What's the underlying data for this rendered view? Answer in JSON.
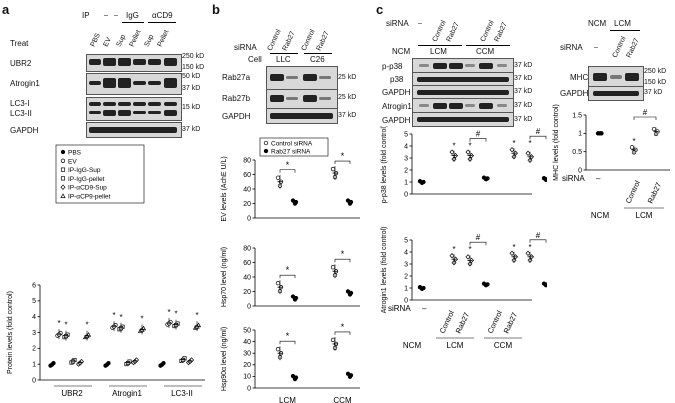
{
  "panels": {
    "a": {
      "letter": "a",
      "ip_label": "IP",
      "ip_dashes": [
        "–",
        "–"
      ],
      "ip_groups": [
        "IgG",
        "αCD9"
      ],
      "treat_label": "Treat",
      "treat_lanes": [
        "PBS",
        "EV",
        "Sup",
        "Pellet",
        "Sup",
        "Pellet"
      ],
      "blots": [
        "UBR2",
        "Atrogin1",
        "LC3-I",
        "LC3-II",
        "GAPDH"
      ],
      "markers": [
        "250 kD",
        "150 kD",
        "50 kD",
        "37 kD",
        "15 kD",
        "37 kD"
      ],
      "legend": [
        "PBS",
        "EV",
        "IP-IgG-Sup",
        "IP-IgG-pellet",
        "IP-αCD9-Sup",
        "IP-αCP9-pellet"
      ]
    },
    "b": {
      "letter": "b",
      "sirna_label": "siRNA",
      "sirna_lanes": [
        "Control",
        "Rab27",
        "Control",
        "Rab27"
      ],
      "cell_label": "Cell",
      "cells": [
        "LLC",
        "C26"
      ],
      "blots": [
        "Rab27a",
        "Rab27b",
        "GAPDH"
      ],
      "markers": [
        "25 kD",
        "25 kD",
        "37 kD"
      ],
      "legend": [
        "Control siRNA",
        "Rab27 siRNA"
      ],
      "xcats": [
        "LCM",
        "CCM"
      ]
    },
    "c": {
      "letter": "c",
      "sirna_label": "siRNA",
      "dash": "–",
      "sirna_lanes": [
        "Control",
        "Rab27",
        "Control",
        "Rab27"
      ],
      "groups": [
        "NCM",
        "LCM",
        "CCM"
      ],
      "blots": [
        "p-p38",
        "p38",
        "GAPDH",
        "Atrogin1",
        "GAPDH"
      ],
      "markers": [
        "37 kD",
        "37 kD",
        "37 kD",
        "37 kD",
        "37 kD"
      ],
      "right_groups": [
        "NCM",
        "LCM"
      ],
      "right_lanes": [
        "Control",
        "Rab27"
      ],
      "right_blots": [
        "MHC",
        "GAPDH"
      ],
      "right_markers": [
        "250 kD",
        "150 kD",
        "37 kD"
      ]
    }
  },
  "chart_data": [
    {
      "type": "scatter",
      "title": "",
      "xlabel": "",
      "ylabel": "Protein levels (fold control)",
      "categories": [
        "UBR2",
        "Atrogin1",
        "LC3-II"
      ],
      "ylim": [
        0,
        6
      ],
      "yticks": [
        0,
        1,
        2,
        3,
        4,
        5,
        6
      ],
      "series": [
        {
          "name": "PBS",
          "values": [
            1,
            1,
            1
          ]
        },
        {
          "name": "EV",
          "values": [
            2.9,
            3.4,
            3.6
          ]
        },
        {
          "name": "IP-IgG-Sup",
          "values": [
            2.8,
            3.3,
            3.5
          ]
        },
        {
          "name": "IP-IgG-pellet",
          "values": [
            1.2,
            1.1,
            1.3
          ]
        },
        {
          "name": "IP-αCD9-Sup",
          "values": [
            1.1,
            1.2,
            1.2
          ]
        },
        {
          "name": "IP-αCP9-pellet",
          "values": [
            2.8,
            3.2,
            3.4
          ]
        }
      ],
      "annotations": [
        "*"
      ]
    },
    {
      "type": "scatter",
      "ylabel": "EV levels (AchE U/L)",
      "categories": [
        "LCM",
        "CCM"
      ],
      "ylim": [
        0,
        80
      ],
      "yticks": [
        0,
        20,
        40,
        60,
        80
      ],
      "series": [
        {
          "name": "Control siRNA",
          "values": [
            50,
            62
          ]
        },
        {
          "name": "Rab27 siRNA",
          "values": [
            22,
            22
          ]
        }
      ],
      "annotations": [
        "*",
        "*"
      ]
    },
    {
      "type": "scatter",
      "ylabel": "Hsp70 level (ng/ml)",
      "categories": [
        "LCM",
        "CCM"
      ],
      "ylim": [
        0,
        80
      ],
      "yticks": [
        0,
        20,
        40,
        60,
        80
      ],
      "series": [
        {
          "name": "Control siRNA",
          "values": [
            26,
            48
          ]
        },
        {
          "name": "Rab27 siRNA",
          "values": [
            11,
            18
          ]
        }
      ],
      "annotations": [
        "*",
        "*"
      ]
    },
    {
      "type": "scatter",
      "ylabel": "Hsp90α level (ng/ml)",
      "categories": [
        "LCM",
        "CCM"
      ],
      "ylim": [
        0,
        50
      ],
      "yticks": [
        0,
        10,
        20,
        30,
        40,
        50
      ],
      "series": [
        {
          "name": "Control siRNA",
          "values": [
            30,
            38
          ]
        },
        {
          "name": "Rab27 siRNA",
          "values": [
            9,
            11
          ]
        }
      ],
      "annotations": [
        "*",
        "*"
      ]
    },
    {
      "type": "scatter",
      "ylabel": "p-p38 levels (fold control)",
      "categories": [
        "NCM",
        "LCM",
        "LCM",
        "LCM",
        "CCM",
        "CCM",
        "CCM"
      ],
      "ylim": [
        0,
        5
      ],
      "yticks": [
        0,
        1,
        2,
        3,
        4,
        5
      ],
      "values": [
        1,
        3.2,
        3.2,
        1.3,
        3.4,
        3.1,
        1.25
      ],
      "annotations": [
        "*",
        "*",
        "#",
        "*",
        "*",
        "#"
      ]
    },
    {
      "type": "scatter",
      "ylabel": "Atrogin1 levels (fold control)",
      "categories": [
        "NCM",
        "LCM",
        "LCM",
        "LCM",
        "CCM",
        "CCM",
        "CCM"
      ],
      "ylim": [
        0,
        5
      ],
      "yticks": [
        0,
        1,
        2,
        3,
        4,
        5
      ],
      "values": [
        1,
        3.4,
        3.3,
        1.3,
        3.6,
        3.6,
        1.3
      ],
      "annotations": [
        "*",
        "*",
        "#",
        "*",
        "*",
        "#"
      ]
    },
    {
      "type": "scatter",
      "ylabel": "MHC levels (fold control)",
      "categories": [
        "NCM",
        "LCM",
        "LCM"
      ],
      "ylim": [
        0,
        1.5
      ],
      "yticks": [
        0,
        0.5,
        1.0,
        1.5
      ],
      "values": [
        1.0,
        0.55,
        1.05
      ],
      "annotations": [
        "*",
        "#"
      ]
    }
  ]
}
